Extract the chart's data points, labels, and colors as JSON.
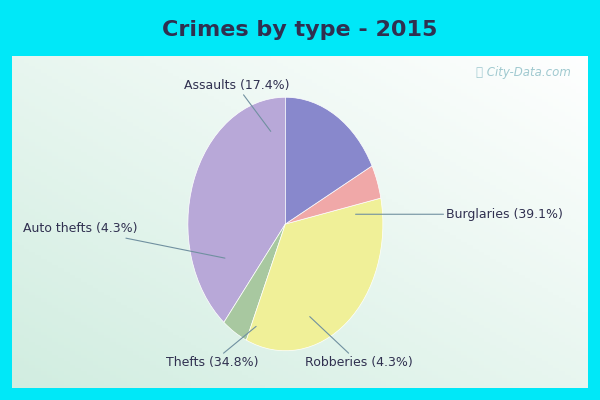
{
  "title": "Crimes by type - 2015",
  "labels": [
    "Burglaries",
    "Robberies",
    "Thefts",
    "Auto thefts",
    "Assaults"
  ],
  "values": [
    39.1,
    4.3,
    34.8,
    4.3,
    17.4
  ],
  "colors": [
    "#b8a8d8",
    "#a8c8a0",
    "#f0f098",
    "#f0a8a8",
    "#8888cc"
  ],
  "outer_background": "#00e8f8",
  "inner_background": "#d0eedd",
  "title_color": "#303050",
  "title_fontsize": 16,
  "label_fontsize": 9,
  "startangle": 90
}
